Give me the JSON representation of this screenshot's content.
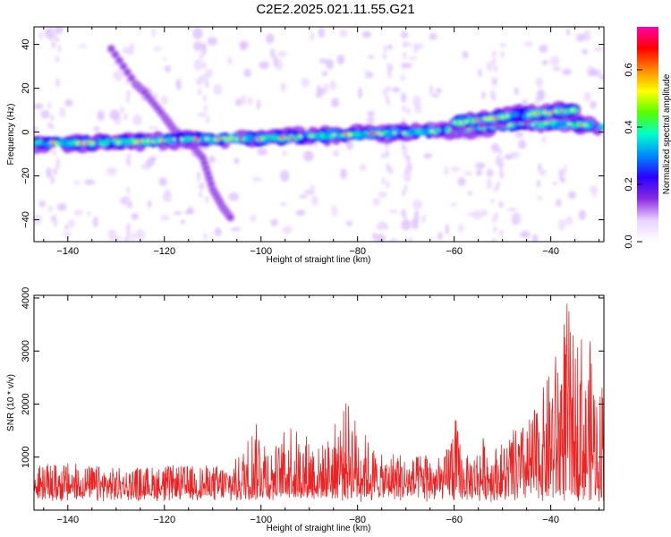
{
  "title": "C2E2.2025.021.11.55.G21",
  "colors": {
    "snr_line": "#ee2222",
    "colorbar": [
      "#ffffff",
      "#e9d3ff",
      "#8a2be2",
      "#2a00ff",
      "#0088ff",
      "#00ffcc",
      "#55ff00",
      "#ffff00",
      "#ff8800",
      "#ff0000",
      "#ff00aa"
    ]
  },
  "chart_data": [
    {
      "type": "heatmap",
      "name": "spectrogram",
      "xlabel": "Height of straight line (km)",
      "ylabel": "Frequency (Hz)",
      "xlim": [
        -147,
        -29
      ],
      "ylim": [
        -50,
        48
      ],
      "x_ticks": [
        -140,
        -120,
        -100,
        -80,
        -60,
        -40
      ],
      "y_ticks": [
        40,
        20,
        0,
        -20,
        -40
      ],
      "colorbar": {
        "label": "Normalized spectral amplitude",
        "range": [
          0.0,
          0.75
        ],
        "ticks": [
          0.0,
          0.2,
          0.4,
          0.6
        ]
      },
      "main_band": [
        [
          -147,
          -5
        ],
        [
          -135,
          -5
        ],
        [
          -120,
          -4
        ],
        [
          -110,
          -3
        ],
        [
          -100,
          -3
        ],
        [
          -90,
          -2
        ],
        [
          -80,
          -1
        ],
        [
          -70,
          0
        ],
        [
          -60,
          1
        ],
        [
          -50,
          3
        ],
        [
          -40,
          4
        ],
        [
          -29,
          3
        ]
      ],
      "upper_band": [
        [
          -60,
          4
        ],
        [
          -50,
          7
        ],
        [
          -40,
          9
        ],
        [
          -35,
          10
        ]
      ],
      "diagonal_trace": [
        [
          -131,
          38
        ],
        [
          -126,
          22
        ],
        [
          -124,
          18
        ],
        [
          -120,
          7
        ],
        [
          -118,
          1
        ],
        [
          -115,
          -4
        ],
        [
          -112,
          -12
        ],
        [
          -110,
          -26
        ],
        [
          -108,
          -34
        ],
        [
          -106,
          -40
        ]
      ]
    },
    {
      "type": "line",
      "name": "snr",
      "xlabel": "Height of straight line (km)",
      "ylabel": "SNR (10 * v/v)",
      "xlim": [
        -147,
        -29
      ],
      "ylim": [
        0,
        4050
      ],
      "x_ticks": [
        -140,
        -120,
        -100,
        -80,
        -60,
        -40
      ],
      "y_ticks": [
        1000,
        2000,
        3000,
        4000
      ],
      "series": [
        {
          "envelope_x": [
            -147,
            -140,
            -130,
            -120,
            -110,
            -106,
            -104,
            -102,
            -100,
            -98,
            -96,
            -94,
            -92,
            -90,
            -88,
            -86,
            -84,
            -82,
            -80,
            -78,
            -76,
            -74,
            -72,
            -70,
            -68,
            -66,
            -64,
            -62,
            -60,
            -58,
            -56,
            -54,
            -52,
            -50,
            -48,
            -46,
            -44,
            -42,
            -40,
            -38,
            -37,
            -36,
            -35,
            -34,
            -33,
            -32,
            -31,
            -30,
            -29
          ],
          "envelope_y": [
            850,
            900,
            800,
            850,
            850,
            900,
            1100,
            1600,
            1700,
            1200,
            1300,
            1800,
            1400,
            1500,
            1200,
            1400,
            1800,
            2100,
            1700,
            1400,
            1100,
            1000,
            1200,
            1000,
            1000,
            1200,
            1000,
            1000,
            1900,
            1000,
            1100,
            1400,
            1200,
            1300,
            1500,
            1600,
            1800,
            2200,
            2700,
            3300,
            4050,
            3800,
            3000,
            4000,
            2400,
            3300,
            2800,
            2100,
            3200
          ]
        }
      ]
    }
  ]
}
